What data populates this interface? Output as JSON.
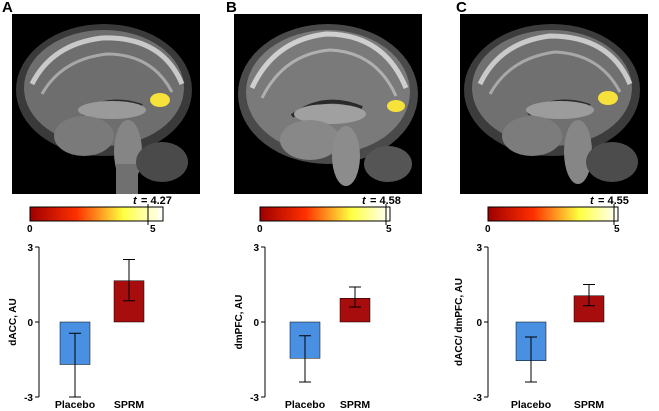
{
  "panels": [
    {
      "letter": "A",
      "t_label": "t",
      "t_value": "= 4.27",
      "t_numeric": 4.27,
      "colorbar": {
        "min_label": "0",
        "max_label": "5",
        "min": 0,
        "max": 5
      },
      "blob_color": "#f6e23a"
    },
    {
      "letter": "B",
      "t_label": "t",
      "t_value": "= 4.58",
      "t_numeric": 4.58,
      "colorbar": {
        "min_label": "0",
        "max_label": "5",
        "min": 0,
        "max": 5
      },
      "blob_color": "#f6e23a"
    },
    {
      "letter": "C",
      "t_label": "t",
      "t_value": "= 4.55",
      "t_numeric": 4.55,
      "colorbar": {
        "min_label": "0",
        "max_label": "5",
        "min": 0,
        "max": 5
      },
      "blob_color": "#f6e23a"
    }
  ],
  "colors": {
    "placebo": "#4a90e2",
    "sprm": "#a80d0d",
    "colorbar_start": "#9e0000",
    "colorbar_mid": "#ff3000",
    "colorbar_yellow": "#ffff40",
    "colorbar_end": "#ffffff"
  },
  "chart_data": [
    {
      "type": "bar",
      "categories": [
        "Placebo",
        "SPRM"
      ],
      "values": [
        -1.7,
        1.65
      ],
      "error_low": [
        -3.0,
        0.85
      ],
      "error_high": [
        -0.45,
        2.5
      ],
      "ylabel": "dACC, AU",
      "ylim": [
        -3,
        3
      ],
      "yticks": [
        "3",
        "0",
        "-3"
      ]
    },
    {
      "type": "bar",
      "categories": [
        "Placebo",
        "SPRM"
      ],
      "values": [
        -1.45,
        0.95
      ],
      "error_low": [
        -2.4,
        0.6
      ],
      "error_high": [
        -0.55,
        1.4
      ],
      "ylabel": "dmPFC, AU",
      "ylim": [
        -3,
        3
      ],
      "yticks": [
        "3",
        "0",
        "-3"
      ]
    },
    {
      "type": "bar",
      "categories": [
        "Placebo",
        "SPRM"
      ],
      "values": [
        -1.55,
        1.05
      ],
      "error_low": [
        -2.4,
        0.65
      ],
      "error_high": [
        -0.6,
        1.5
      ],
      "ylabel": "dACC/ dmPFC, AU",
      "ylim": [
        -3,
        3
      ],
      "yticks": [
        "3",
        "0",
        "-3"
      ]
    }
  ]
}
